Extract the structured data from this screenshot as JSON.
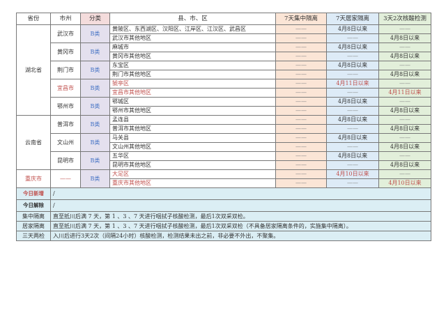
{
  "headers": {
    "province": "省份",
    "city": "市州",
    "class": "分类",
    "district": "县、市、区",
    "central": "7天集中隔离",
    "home": "7天居家隔离",
    "test": "3天2次核酸检测"
  },
  "dash": "——",
  "provinces": [
    {
      "name": "湖北省",
      "red": false,
      "cities": [
        {
          "name": "武汉市",
          "red": false,
          "class": "B类",
          "rows": [
            {
              "district": "黄陂区、东西湖区、汉阳区、江岸区、江汉区、武昌区",
              "home": "4月8日以来",
              "test": ""
            },
            {
              "district": "武汉市其他地区",
              "home": "",
              "test": "4月8日以来"
            }
          ]
        },
        {
          "name": "黄冈市",
          "red": false,
          "class": "B类",
          "rows": [
            {
              "district": "麻城市",
              "home": "4月8日以来",
              "test": ""
            },
            {
              "district": "黄冈市其他地区",
              "home": "",
              "test": "4月8日以来"
            }
          ]
        },
        {
          "name": "荆门市",
          "red": false,
          "class": "B类",
          "rows": [
            {
              "district": "东宝区",
              "home": "4月8日以来",
              "test": ""
            },
            {
              "district": "荆门市其他地区",
              "home": "",
              "test": "4月8日以来"
            }
          ]
        },
        {
          "name": "宜昌市",
          "red": true,
          "class": "B类",
          "rows": [
            {
              "district": "猇亭区",
              "home": "4月11日以来",
              "test": ""
            },
            {
              "district": "宜昌市其他地区",
              "home": "",
              "test": "4月11日以来"
            }
          ]
        },
        {
          "name": "鄂州市",
          "red": false,
          "class": "B类",
          "rows": [
            {
              "district": "鄂城区",
              "home": "4月8日以来",
              "test": ""
            },
            {
              "district": "鄂州市其他地区",
              "home": "",
              "test": "4月8日以来"
            }
          ]
        }
      ]
    },
    {
      "name": "云南省",
      "red": false,
      "cities": [
        {
          "name": "普洱市",
          "red": false,
          "class": "B类",
          "rows": [
            {
              "district": "孟连县",
              "home": "4月8日以来",
              "test": ""
            },
            {
              "district": "普洱市其他地区",
              "home": "",
              "test": "4月8日以来"
            }
          ]
        },
        {
          "name": "文山州",
          "red": false,
          "class": "B类",
          "rows": [
            {
              "district": "马关县",
              "home": "4月8日以来",
              "test": ""
            },
            {
              "district": "文山州其他地区",
              "home": "",
              "test": "4月8日以来"
            }
          ]
        },
        {
          "name": "昆明市",
          "red": false,
          "class": "B类",
          "rows": [
            {
              "district": "五华区",
              "home": "4月8日以来",
              "test": ""
            },
            {
              "district": "昆明市其他地区",
              "home": "",
              "test": "4月8日以来"
            }
          ]
        }
      ]
    },
    {
      "name": "重庆市",
      "red": true,
      "cities": [
        {
          "name": "——",
          "red": true,
          "class": "B类",
          "rows": [
            {
              "district": "大足区",
              "home": "4月10日以来",
              "test": ""
            },
            {
              "district": "重庆市其他地区",
              "home": "",
              "test": "4月10日以来"
            }
          ]
        }
      ]
    }
  ],
  "footer": [
    {
      "label": "今日新增",
      "text": "/",
      "label_color": "#c0504d",
      "bold": true
    },
    {
      "label": "今日解除",
      "text": "/",
      "label_color": "#333333",
      "bold": true
    },
    {
      "label": "集中隔离",
      "text": "直至抵川后满 7 天，第 1 、3 、7 天进行咽拭子核酸检测，最后1次双采双检。"
    },
    {
      "label": "居家隔离",
      "text": "直至抵川后满 7 天，第 1 、3 、7 天进行咽拭子核酸检测，最后1次双采双检（不具备居家隔离条件的，实施集中隔离）。"
    },
    {
      "label": "三天两检",
      "text": "入川后进行3天2次（间隔24小时）核酸检测，检测结果未出之前，非必要不外出，不聚集。"
    }
  ],
  "colors": {
    "red": "#c0504d",
    "blue": "#4472c4",
    "central_bg": "#fbe5d6",
    "home_bg": "#ddebf7",
    "test_bg": "#e2efda",
    "class_bg": "#e4e0ee",
    "footer_bg": "#dbeef4"
  }
}
